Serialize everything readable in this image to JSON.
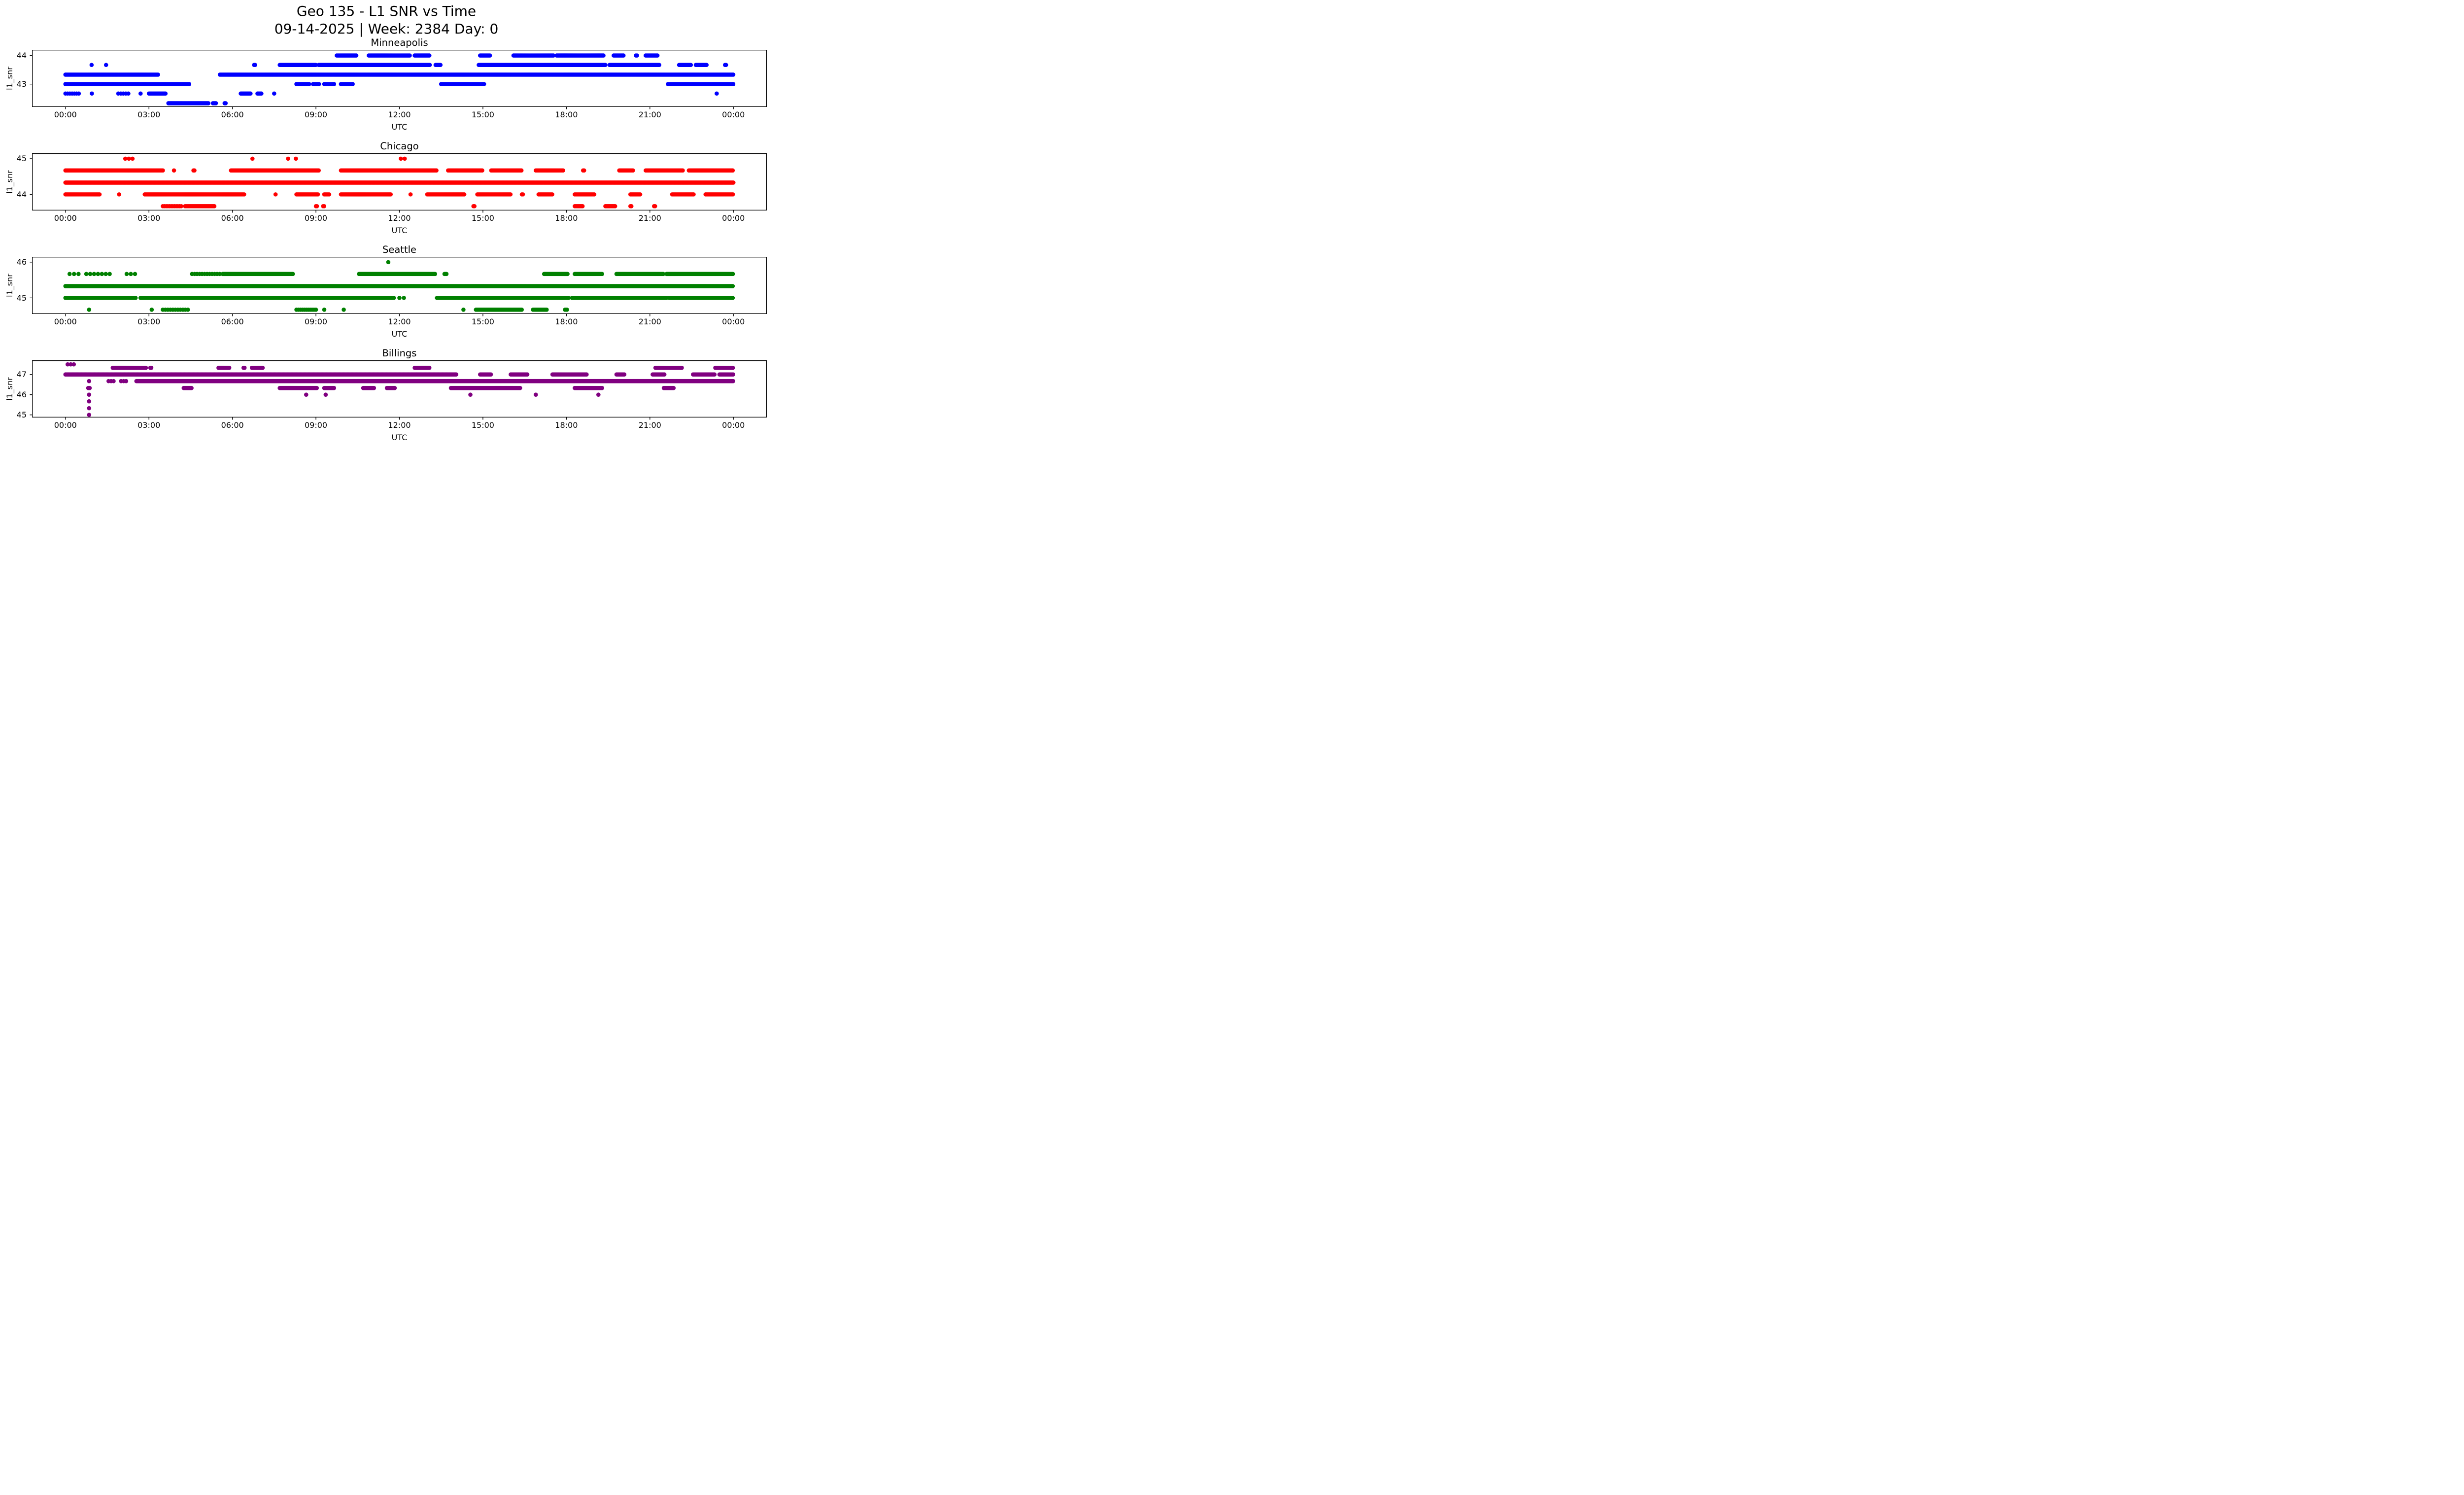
{
  "title": "Geo 135 - L1 SNR vs Time",
  "subtitle": "09-14-2025 | Week: 2384 Day: 0",
  "background": "#ffffff",
  "chart_data": [
    {
      "type": "scatter",
      "title": "Minneapolis",
      "color": "#0000ff",
      "xlabel": "UTC",
      "ylabel": "l1_snr",
      "grid": false,
      "xlim": [
        -1.2,
        25.2
      ],
      "ylim": [
        42.2,
        44.2
      ],
      "xticks": [
        0,
        3,
        6,
        9,
        12,
        15,
        18,
        21,
        24
      ],
      "xtick_labels": [
        "00:00",
        "03:00",
        "06:00",
        "09:00",
        "12:00",
        "15:00",
        "18:00",
        "21:00",
        "00:00"
      ],
      "yticks": [
        43,
        44
      ],
      "bands": [
        {
          "snr": 44.0,
          "segments": [
            [
              9.75,
              10.45
            ],
            [
              10.9,
              12.4
            ],
            [
              12.55,
              13.1
            ],
            [
              14.9,
              15.25
            ],
            [
              16.1,
              17.55
            ],
            [
              17.65,
              19.35
            ],
            [
              19.7,
              20.05
            ],
            [
              20.5,
              20.55
            ],
            [
              20.85,
              21.3
            ]
          ]
        },
        {
          "snr": 43.67,
          "segments": [
            [
              0.94,
              0.94
            ],
            [
              1.46,
              1.46
            ],
            [
              6.78,
              6.84
            ],
            [
              7.7,
              9.0
            ],
            [
              9.1,
              13.1
            ],
            [
              13.3,
              13.5
            ],
            [
              14.85,
              19.4
            ],
            [
              19.55,
              21.35
            ],
            [
              22.05,
              22.5
            ],
            [
              22.65,
              23.05
            ],
            [
              23.7,
              23.75
            ]
          ]
        },
        {
          "snr": 43.33,
          "segments": [
            [
              0.0,
              3.35
            ],
            [
              5.55,
              24.0
            ]
          ]
        },
        {
          "snr": 43.0,
          "segments": [
            [
              0.0,
              4.45
            ],
            [
              8.3,
              8.78
            ],
            [
              8.9,
              9.12
            ],
            [
              9.3,
              9.68
            ],
            [
              9.9,
              10.35
            ],
            [
              13.5,
              15.05
            ],
            [
              21.65,
              24.0
            ]
          ]
        },
        {
          "snr": 42.67,
          "segments": [
            [
              0.0,
              0.5,
              0.08
            ],
            [
              0.95,
              0.95
            ],
            [
              1.9,
              2.3,
              0.09
            ],
            [
              2.7,
              2.72
            ],
            [
              3.0,
              3.62
            ],
            [
              6.3,
              6.65
            ],
            [
              6.9,
              7.05
            ],
            [
              7.5,
              7.52
            ],
            [
              23.4,
              23.42
            ]
          ]
        },
        {
          "snr": 42.33,
          "segments": [
            [
              3.7,
              5.15
            ],
            [
              5.3,
              5.42
            ],
            [
              5.72,
              5.76
            ]
          ]
        }
      ]
    },
    {
      "type": "scatter",
      "title": "Chicago",
      "color": "#ff0000",
      "xlabel": "UTC",
      "ylabel": "l1_snr",
      "grid": false,
      "xlim": [
        -1.2,
        25.2
      ],
      "ylim": [
        43.55,
        45.15
      ],
      "xticks": [
        0,
        3,
        6,
        9,
        12,
        15,
        18,
        21,
        24
      ],
      "xtick_labels": [
        "00:00",
        "03:00",
        "06:00",
        "09:00",
        "12:00",
        "15:00",
        "18:00",
        "21:00",
        "00:00"
      ],
      "yticks": [
        44,
        45
      ],
      "bands": [
        {
          "snr": 45.0,
          "segments": [
            [
              2.15,
              2.45,
              0.13
            ],
            [
              6.72,
              6.74
            ],
            [
              8.0,
              8.02
            ],
            [
              8.28,
              8.3
            ],
            [
              12.05,
              12.2,
              0.14
            ]
          ]
        },
        {
          "snr": 44.67,
          "segments": [
            [
              0.0,
              3.5
            ],
            [
              3.9,
              3.92
            ],
            [
              4.6,
              4.64
            ],
            [
              5.95,
              9.1
            ],
            [
              9.9,
              13.35
            ],
            [
              13.75,
              15.0
            ],
            [
              15.3,
              16.4
            ],
            [
              16.9,
              17.9
            ],
            [
              18.6,
              18.64
            ],
            [
              19.9,
              20.4
            ],
            [
              20.85,
              22.2
            ],
            [
              22.4,
              24.0
            ]
          ]
        },
        {
          "snr": 44.33,
          "segments": [
            [
              0.0,
              24.0,
              0.02
            ]
          ]
        },
        {
          "snr": 44.0,
          "segments": [
            [
              0.0,
              1.25
            ],
            [
              1.93,
              1.95
            ],
            [
              2.85,
              6.45
            ],
            [
              7.55,
              7.57
            ],
            [
              8.3,
              9.1
            ],
            [
              9.3,
              9.5
            ],
            [
              9.9,
              11.7
            ],
            [
              12.4,
              12.42
            ],
            [
              13.0,
              14.35
            ],
            [
              14.8,
              16.0
            ],
            [
              16.4,
              16.44
            ],
            [
              17.0,
              17.5
            ],
            [
              18.3,
              19.0
            ],
            [
              20.3,
              20.65
            ],
            [
              21.8,
              22.6
            ],
            [
              23.0,
              24.0
            ]
          ]
        },
        {
          "snr": 43.67,
          "segments": [
            [
              3.5,
              4.2,
              0.06
            ],
            [
              4.3,
              5.35
            ],
            [
              9.0,
              9.04
            ],
            [
              9.26,
              9.3
            ],
            [
              14.66,
              14.7
            ],
            [
              18.3,
              18.6
            ],
            [
              19.4,
              19.75
            ],
            [
              20.3,
              20.34
            ],
            [
              21.15,
              21.2
            ]
          ]
        }
      ]
    },
    {
      "type": "scatter",
      "title": "Seattle",
      "color": "#008000",
      "xlabel": "UTC",
      "ylabel": "l1_snr",
      "grid": false,
      "xlim": [
        -1.2,
        25.2
      ],
      "ylim": [
        44.55,
        46.15
      ],
      "xticks": [
        0,
        3,
        6,
        9,
        12,
        15,
        18,
        21,
        24
      ],
      "xtick_labels": [
        "00:00",
        "03:00",
        "06:00",
        "09:00",
        "12:00",
        "15:00",
        "18:00",
        "21:00",
        "00:00"
      ],
      "yticks": [
        45,
        46
      ],
      "bands": [
        {
          "snr": 46.0,
          "segments": [
            [
              11.6,
              11.6
            ]
          ]
        },
        {
          "snr": 45.67,
          "segments": [
            [
              0.15,
              0.5,
              0.16
            ],
            [
              0.75,
              1.6,
              0.14
            ],
            [
              2.2,
              2.55,
              0.15
            ],
            [
              4.55,
              5.55,
              0.09
            ],
            [
              5.65,
              8.2
            ],
            [
              10.55,
              13.3
            ],
            [
              13.62,
              13.72
            ],
            [
              17.2,
              18.05
            ],
            [
              18.3,
              19.3
            ],
            [
              19.8,
              21.5
            ],
            [
              21.6,
              24.0
            ]
          ]
        },
        {
          "snr": 45.33,
          "segments": [
            [
              0.0,
              24.0
            ]
          ]
        },
        {
          "snr": 45.0,
          "segments": [
            [
              0.0,
              2.55
            ],
            [
              2.7,
              11.8
            ],
            [
              12.0,
              12.02
            ],
            [
              12.16,
              12.18
            ],
            [
              13.35,
              18.1
            ],
            [
              18.2,
              21.6
            ],
            [
              21.7,
              24.0
            ]
          ]
        },
        {
          "snr": 44.67,
          "segments": [
            [
              0.85,
              0.85
            ],
            [
              3.1,
              3.12
            ],
            [
              3.5,
              4.4,
              0.09
            ],
            [
              8.3,
              9.0,
              0.07
            ],
            [
              9.3,
              9.32
            ],
            [
              10.0,
              10.02
            ],
            [
              14.3,
              14.32
            ],
            [
              14.75,
              16.4
            ],
            [
              16.8,
              17.3
            ],
            [
              17.95,
              18.02
            ]
          ]
        }
      ]
    },
    {
      "type": "scatter",
      "title": "Billings",
      "color": "#800080",
      "xlabel": "UTC",
      "ylabel": "l1_snr",
      "grid": false,
      "xlim": [
        -1.2,
        25.2
      ],
      "ylim": [
        44.87,
        47.7
      ],
      "xticks": [
        0,
        3,
        6,
        9,
        12,
        15,
        18,
        21,
        24
      ],
      "xtick_labels": [
        "00:00",
        "03:00",
        "06:00",
        "09:00",
        "12:00",
        "15:00",
        "18:00",
        "21:00",
        "00:00"
      ],
      "yticks": [
        45,
        46,
        47
      ],
      "bands": [
        {
          "snr": 47.5,
          "segments": [
            [
              0.08,
              0.32,
              0.11
            ]
          ]
        },
        {
          "snr": 47.33,
          "segments": [
            [
              1.7,
              2.9
            ],
            [
              3.05,
              3.09
            ],
            [
              5.5,
              5.9
            ],
            [
              6.4,
              6.44
            ],
            [
              6.7,
              7.1
            ],
            [
              12.55,
              13.1
            ],
            [
              21.2,
              22.15
            ],
            [
              23.35,
              24.0
            ]
          ]
        },
        {
          "snr": 47.0,
          "segments": [
            [
              0.0,
              14.05,
              0.02
            ],
            [
              14.9,
              15.3
            ],
            [
              16.0,
              16.6
            ],
            [
              17.5,
              18.75
            ],
            [
              19.8,
              20.1
            ],
            [
              21.1,
              21.55
            ],
            [
              22.55,
              23.35
            ],
            [
              23.5,
              24.0
            ]
          ]
        },
        {
          "snr": 46.67,
          "segments": [
            [
              0.85,
              0.87
            ],
            [
              1.55,
              1.75,
              0.09
            ],
            [
              2.0,
              2.2,
              0.09
            ],
            [
              2.55,
              24.0,
              0.02
            ]
          ]
        },
        {
          "snr": 46.33,
          "segments": [
            [
              0.82,
              0.88,
              0.05
            ],
            [
              4.25,
              4.55
            ],
            [
              7.7,
              9.05
            ],
            [
              9.3,
              9.65
            ],
            [
              10.7,
              11.1
            ],
            [
              11.55,
              11.85
            ],
            [
              13.85,
              16.35
            ],
            [
              18.3,
              19.3
            ],
            [
              21.5,
              21.85
            ]
          ]
        },
        {
          "snr": 46.0,
          "segments": [
            [
              0.85,
              0.85
            ],
            [
              8.65,
              8.65
            ],
            [
              9.35,
              9.35
            ],
            [
              14.55,
              14.55
            ],
            [
              16.9,
              16.9
            ],
            [
              19.15,
              19.15
            ]
          ]
        },
        {
          "snr": 45.67,
          "segments": [
            [
              0.85,
              0.85
            ]
          ]
        },
        {
          "snr": 45.33,
          "segments": [
            [
              0.85,
              0.85
            ]
          ]
        },
        {
          "snr": 45.0,
          "segments": [
            [
              0.85,
              0.85
            ]
          ]
        }
      ]
    }
  ]
}
